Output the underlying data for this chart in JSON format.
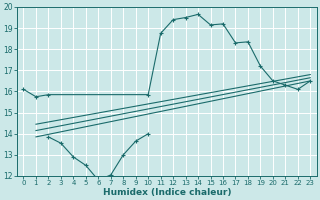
{
  "xlabel": "Humidex (Indice chaleur)",
  "bg_color": "#cce8e8",
  "line_color": "#1a6b6b",
  "grid_color": "#ffffff",
  "xlim": [
    -0.5,
    23.5
  ],
  "ylim": [
    12,
    20
  ],
  "xticks": [
    0,
    1,
    2,
    3,
    4,
    5,
    6,
    7,
    8,
    9,
    10,
    11,
    12,
    13,
    14,
    15,
    16,
    17,
    18,
    19,
    20,
    21,
    22,
    23
  ],
  "yticks": [
    12,
    13,
    14,
    15,
    16,
    17,
    18,
    19,
    20
  ],
  "curve1_x": [
    0,
    1,
    2,
    10,
    11,
    12,
    13,
    14,
    15,
    16,
    17,
    18,
    19,
    20,
    21,
    22,
    23
  ],
  "curve1_y": [
    16.1,
    15.75,
    15.85,
    15.85,
    18.75,
    19.4,
    19.5,
    19.65,
    19.15,
    19.2,
    18.3,
    18.35,
    17.2,
    16.5,
    16.3,
    16.1,
    16.5
  ],
  "curve2_x": [
    2,
    3,
    4,
    5,
    6,
    7,
    8,
    9,
    10
  ],
  "curve2_y": [
    13.85,
    13.55,
    12.9,
    12.5,
    11.8,
    12.05,
    13.0,
    13.65,
    14.0
  ],
  "line1_x": [
    1,
    23
  ],
  "line1_y": [
    13.85,
    16.5
  ],
  "line2_x": [
    1,
    23
  ],
  "line2_y": [
    14.15,
    16.65
  ],
  "line3_x": [
    1,
    23
  ],
  "line3_y": [
    14.45,
    16.8
  ]
}
